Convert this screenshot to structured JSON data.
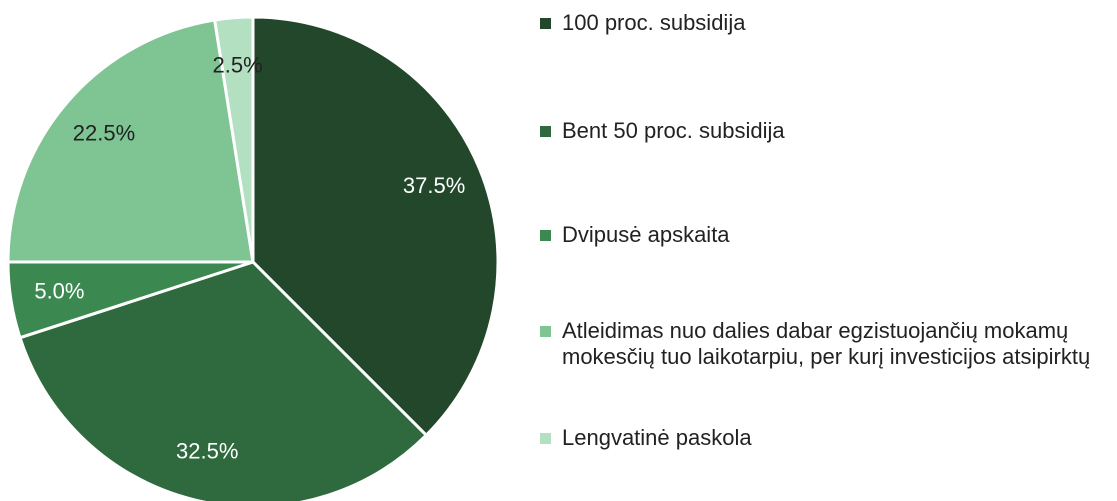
{
  "chart_data": {
    "type": "pie",
    "categories": [
      "100 proc. subsidija",
      "Bent 50 proc. subsidija",
      "Dvipusė apskaita",
      "Atleidimas nuo dalies dabar egzistuojančių mokamų mokesčių tuo laikotarpiu, per kurį investicijos atsipirktų",
      "Lengvatinė paskola"
    ],
    "values": [
      37.5,
      32.5,
      5.0,
      22.5,
      2.5
    ],
    "value_labels": [
      "37.5%",
      "32.5%",
      "5.0%",
      "22.5%",
      "2.5%"
    ],
    "colors": [
      "#22472b",
      "#2e6a3d",
      "#3b8951",
      "#7fc594",
      "#b3e0c1"
    ],
    "legend": "right"
  }
}
